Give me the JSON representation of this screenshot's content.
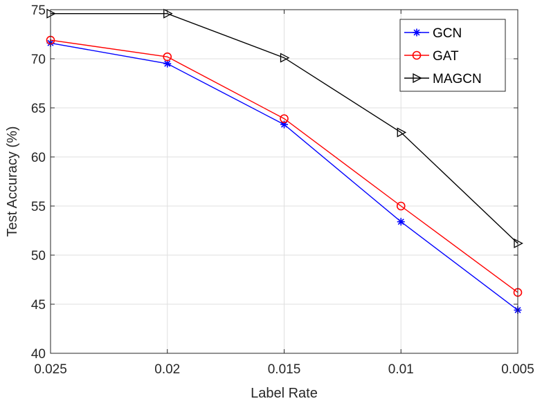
{
  "chart_data": {
    "type": "line",
    "xlabel": "Label Rate",
    "ylabel": "Test Accuracy (%)",
    "categories": [
      "0.025",
      "0.02",
      "0.015",
      "0.01",
      "0.005"
    ],
    "ylim": [
      40,
      75
    ],
    "yticks": [
      "40",
      "45",
      "50",
      "55",
      "60",
      "65",
      "70",
      "75"
    ],
    "grid": true,
    "legend_position": "top-right",
    "series": [
      {
        "name": "GCN",
        "color": "#0000ff",
        "marker": "asterisk",
        "values": [
          71.6,
          69.5,
          63.3,
          53.4,
          44.4
        ]
      },
      {
        "name": "GAT",
        "color": "#ff0000",
        "marker": "circle",
        "values": [
          71.9,
          70.2,
          63.9,
          55.0,
          46.2
        ]
      },
      {
        "name": "MAGCN",
        "color": "#000000",
        "marker": "triangle-right",
        "values": [
          74.6,
          74.6,
          70.1,
          62.5,
          51.2
        ]
      }
    ]
  }
}
